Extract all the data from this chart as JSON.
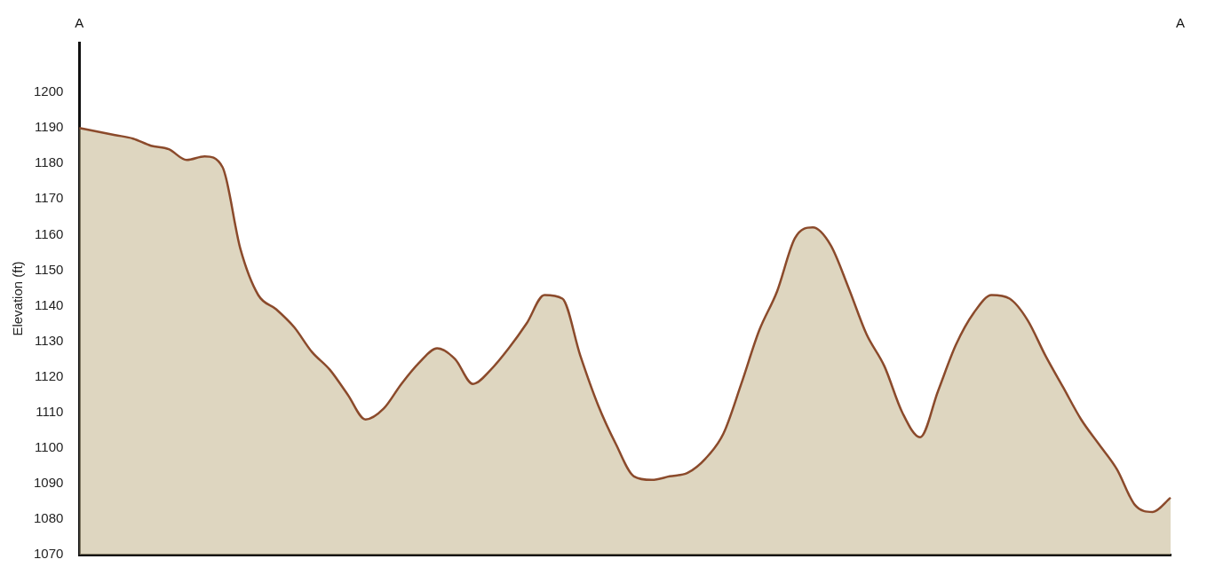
{
  "chart_data": {
    "type": "area",
    "ylabel": "Elevation (ft)",
    "annotations": [
      "A",
      "A"
    ],
    "categories": [
      null,
      null,
      null,
      null,
      null,
      null,
      null,
      null,
      null,
      null,
      null,
      null,
      null,
      null,
      null,
      null,
      null,
      null,
      null,
      null,
      null,
      null,
      null,
      null,
      null,
      null,
      null,
      null,
      null,
      null,
      null,
      null,
      null,
      null,
      null,
      null,
      null,
      null,
      null,
      null,
      null,
      null,
      null,
      null,
      null,
      null,
      null,
      null,
      null,
      null,
      null,
      null,
      null,
      null,
      null,
      null,
      null,
      null,
      null,
      null,
      null,
      null
    ],
    "series": [
      {
        "color": "#8b4a2b",
        "values": [
          1190,
          1189,
          1188,
          1187,
          1185,
          1184,
          1181,
          1182,
          1179,
          1156,
          1143,
          1139,
          1134,
          1127,
          1122,
          1115,
          1108,
          1111,
          1118,
          1124,
          1128,
          1125,
          1118,
          1122,
          1128,
          1135,
          1143,
          1142,
          1126,
          1112,
          1101,
          1092,
          1091,
          1092,
          1093,
          1097,
          1104,
          1118,
          1133,
          1144,
          1159,
          1162,
          1157,
          1145,
          1132,
          1123,
          1110,
          1103,
          1116,
          1129,
          1138,
          1143,
          1142,
          1136,
          1126,
          1117,
          1108,
          1101,
          1094,
          1084,
          1082,
          1086
        ]
      }
    ],
    "ylim": [
      1070,
      1214
    ],
    "yticks": [
      1070,
      1080,
      1090,
      1100,
      1110,
      1120,
      1130,
      1140,
      1150,
      1160,
      1170,
      1180,
      1190,
      1200
    ],
    "grid": false,
    "legend": false,
    "marker": "none",
    "tick_labels": "y"
  }
}
